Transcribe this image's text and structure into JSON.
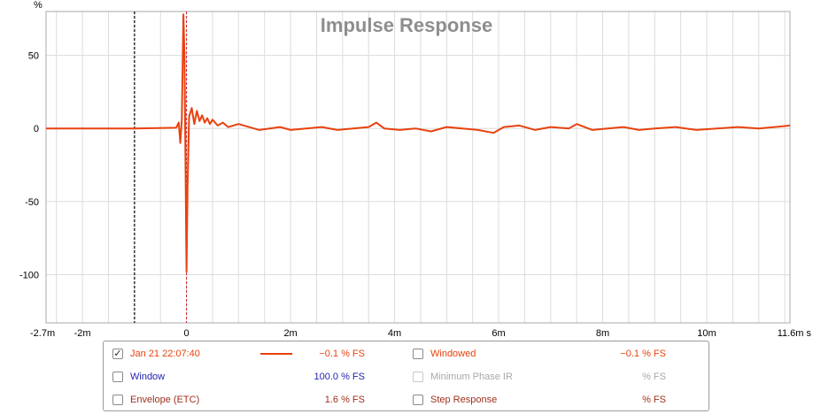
{
  "colors": {
    "trace": "#e8420f",
    "title": "#8e8e8e",
    "grid": "#dcdcdc",
    "axis_text": "#000000",
    "marker_left": "#000000",
    "marker_zero": "#d0202a",
    "window_blue": "#1f1fb0",
    "step_brown": "#a0301c",
    "disabled_gray": "#a8a8a8"
  },
  "chart_data": {
    "type": "line",
    "title": "Impulse Response",
    "xlabel": "",
    "ylabel": "%",
    "x_unit": "s",
    "xlim": [
      -2.7,
      11.6
    ],
    "ylim": [
      -133,
      80
    ],
    "x_ticks": [
      "-2.7m",
      "-2m",
      "0",
      "2m",
      "4m",
      "6m",
      "8m",
      "10m",
      "11.6m s"
    ],
    "x_tick_values": [
      -2.7,
      -2,
      0,
      2,
      4,
      6,
      8,
      10,
      11.6
    ],
    "y_ticks": [
      "50",
      "0",
      "-50",
      "-100"
    ],
    "y_tick_values": [
      50,
      0,
      -50,
      -100
    ],
    "grid": true,
    "markers_ms": [
      -1.0,
      0.0
    ],
    "series": [
      {
        "name": "Jan 21 22:07:40",
        "x": [
          -2.7,
          -2.0,
          -1.0,
          -0.2,
          -0.15,
          -0.12,
          -0.09,
          -0.06,
          -0.04,
          -0.02,
          0.0,
          0.02,
          0.05,
          0.1,
          0.15,
          0.2,
          0.25,
          0.3,
          0.35,
          0.4,
          0.45,
          0.5,
          0.6,
          0.7,
          0.8,
          0.9,
          1.0,
          1.2,
          1.4,
          1.6,
          1.8,
          2.0,
          2.3,
          2.6,
          2.9,
          3.2,
          3.5,
          3.65,
          3.8,
          4.1,
          4.4,
          4.7,
          5.0,
          5.3,
          5.6,
          5.9,
          6.1,
          6.4,
          6.7,
          7.0,
          7.35,
          7.5,
          7.8,
          8.1,
          8.4,
          8.7,
          9.0,
          9.4,
          9.8,
          10.2,
          10.6,
          11.0,
          11.3,
          11.6
        ],
        "y": [
          0,
          0,
          0,
          0.5,
          4,
          -10,
          6,
          78,
          50,
          -20,
          -98,
          -40,
          8,
          14,
          3,
          12,
          5,
          9,
          4,
          7,
          3,
          6,
          2,
          4,
          1,
          2,
          3,
          1,
          -1,
          0,
          1,
          -1,
          0,
          1,
          -1,
          0,
          1,
          4,
          0,
          -1,
          0,
          -2,
          1,
          0,
          -1,
          -3,
          1,
          2,
          -1,
          1,
          0,
          3,
          -1,
          0,
          1,
          -1,
          0,
          1,
          -1,
          0,
          1,
          0,
          1,
          2
        ]
      }
    ]
  },
  "legend": {
    "rows": [
      {
        "left": {
          "checked": true,
          "label": "Jan 21 22:07:40",
          "value": "−0.1 % FS",
          "color": "#e8420f",
          "swatch": true
        },
        "right": {
          "checked": false,
          "label": "Windowed",
          "value": "−0.1 % FS",
          "color": "#e8420f",
          "disabled": false
        }
      },
      {
        "left": {
          "checked": false,
          "label": "Window",
          "value": "100.0 % FS",
          "color": "#1f1fb0",
          "swatch": false
        },
        "right": {
          "checked": false,
          "label": "Minimum Phase IR",
          "value": "% FS",
          "color": "#a8a8a8",
          "disabled": true
        }
      },
      {
        "left": {
          "checked": false,
          "label": "Envelope (ETC)",
          "value": "1.6 % FS",
          "color": "#a0301c",
          "swatch": false
        },
        "right": {
          "checked": false,
          "label": "Step Response",
          "value": "% FS",
          "color": "#a0301c",
          "disabled": false
        }
      }
    ]
  }
}
